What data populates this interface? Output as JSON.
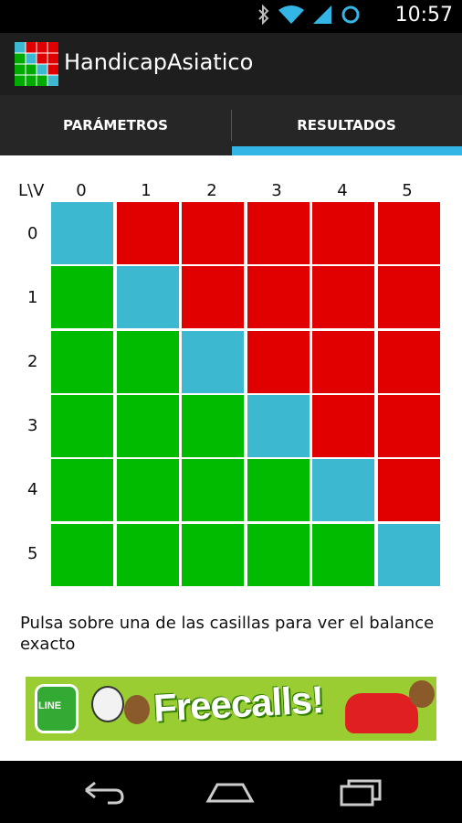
{
  "status_bar": {
    "time": "10:57",
    "icons": [
      "bluetooth-icon",
      "wifi-icon",
      "signal-icon",
      "sync-icon"
    ]
  },
  "app": {
    "title": "HandicapAsiatico",
    "icon": "app-grid-icon"
  },
  "tabs": [
    {
      "label": "PARÁMETROS",
      "selected": false
    },
    {
      "label": "RESULTADOS",
      "selected": true
    }
  ],
  "grid": {
    "corner_label": "L\\V",
    "columns": [
      "0",
      "1",
      "2",
      "3",
      "4",
      "5"
    ],
    "rows": [
      "0",
      "1",
      "2",
      "3",
      "4",
      "5"
    ],
    "colors": {
      "draw": "#3cb8d0",
      "lose": "#e00000",
      "win": "#00bb00"
    }
  },
  "message": "Pulsa sobre una de las casillas para ver el balance exacto",
  "ad": {
    "brand": "LINE",
    "headline": "Freecalls!"
  },
  "nav": [
    "back-icon",
    "home-icon",
    "recent-apps-icon"
  ]
}
